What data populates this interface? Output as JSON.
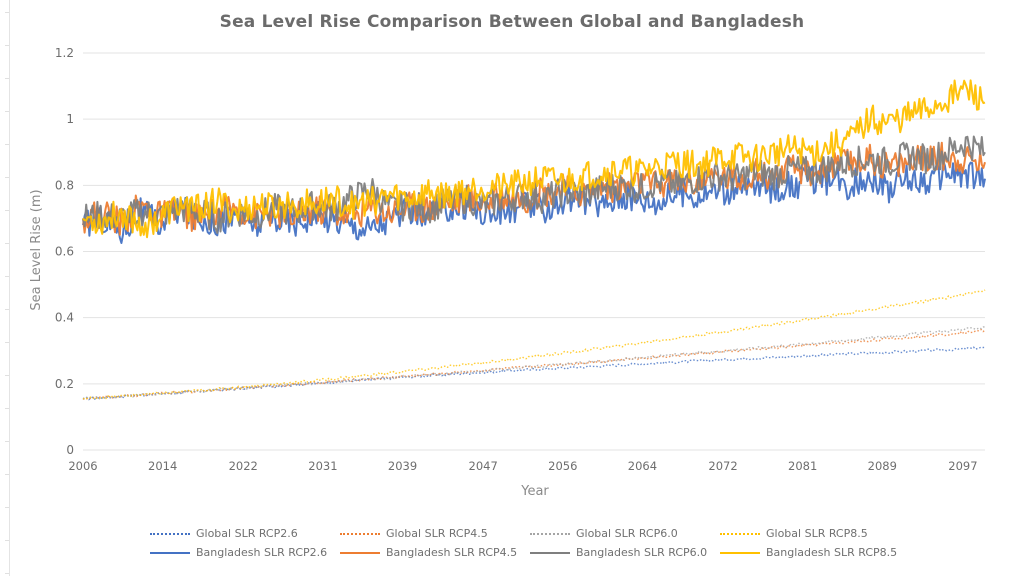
{
  "chart_data": {
    "type": "line",
    "title": "Sea Level Rise Comparison Between Global and Bangladesh",
    "xlabel": "Year",
    "ylabel": "Sea Level Rise (m)",
    "ylim": [
      0,
      1.2
    ],
    "xlim": [
      2006,
      2100
    ],
    "yticks": [
      "0",
      "0.2",
      "0.4",
      "0.6",
      "0.8",
      "1",
      "1.2"
    ],
    "ytick_values": [
      0,
      0.2,
      0.4,
      0.6,
      0.8,
      1.0,
      1.2
    ],
    "xticks": [
      "2006",
      "2014",
      "2022",
      "2031",
      "2039",
      "2047",
      "2056",
      "2064",
      "2072",
      "2081",
      "2089",
      "2097"
    ],
    "xtick_values": [
      2006,
      2014.3,
      2022.7,
      2031,
      2039.3,
      2047.7,
      2056,
      2064.3,
      2072.7,
      2081,
      2089.3,
      2097.7
    ],
    "grid": true,
    "legend_position": "bottom",
    "x": [
      2006,
      2008,
      2010,
      2012,
      2014,
      2016,
      2018,
      2020,
      2022,
      2024,
      2026,
      2028,
      2030,
      2032,
      2034,
      2036,
      2038,
      2040,
      2042,
      2044,
      2046,
      2048,
      2050,
      2052,
      2054,
      2056,
      2058,
      2060,
      2062,
      2064,
      2066,
      2068,
      2070,
      2072,
      2074,
      2076,
      2078,
      2080,
      2082,
      2084,
      2086,
      2088,
      2090,
      2092,
      2094,
      2096,
      2098,
      2100
    ],
    "series": [
      {
        "name": "Global SLR RCP2.6",
        "color": "#4472c4",
        "style": "dotted",
        "values": [
          0.155,
          0.158,
          0.162,
          0.166,
          0.17,
          0.173,
          0.177,
          0.181,
          0.185,
          0.189,
          0.193,
          0.197,
          0.201,
          0.205,
          0.209,
          0.213,
          0.217,
          0.221,
          0.225,
          0.228,
          0.232,
          0.235,
          0.239,
          0.242,
          0.245,
          0.248,
          0.251,
          0.254,
          0.257,
          0.26,
          0.263,
          0.266,
          0.269,
          0.272,
          0.275,
          0.278,
          0.28,
          0.283,
          0.286,
          0.288,
          0.291,
          0.293,
          0.296,
          0.298,
          0.301,
          0.303,
          0.306,
          0.31
        ]
      },
      {
        "name": "Global SLR RCP4.5",
        "color": "#ed7d31",
        "style": "dotted",
        "values": [
          0.155,
          0.158,
          0.162,
          0.166,
          0.17,
          0.174,
          0.178,
          0.182,
          0.186,
          0.19,
          0.194,
          0.198,
          0.202,
          0.206,
          0.211,
          0.215,
          0.219,
          0.224,
          0.228,
          0.232,
          0.237,
          0.241,
          0.246,
          0.25,
          0.255,
          0.259,
          0.264,
          0.268,
          0.273,
          0.277,
          0.282,
          0.286,
          0.291,
          0.295,
          0.3,
          0.304,
          0.309,
          0.313,
          0.318,
          0.322,
          0.327,
          0.331,
          0.336,
          0.34,
          0.345,
          0.35,
          0.356,
          0.362
        ]
      },
      {
        "name": "Global SLR RCP6.0",
        "color": "#a5a5a5",
        "style": "dotted",
        "values": [
          0.155,
          0.158,
          0.162,
          0.166,
          0.17,
          0.174,
          0.178,
          0.182,
          0.186,
          0.19,
          0.194,
          0.198,
          0.202,
          0.206,
          0.21,
          0.214,
          0.218,
          0.223,
          0.227,
          0.231,
          0.236,
          0.24,
          0.245,
          0.249,
          0.254,
          0.258,
          0.263,
          0.268,
          0.273,
          0.278,
          0.283,
          0.288,
          0.293,
          0.298,
          0.303,
          0.308,
          0.313,
          0.318,
          0.323,
          0.328,
          0.333,
          0.339,
          0.344,
          0.349,
          0.355,
          0.36,
          0.365,
          0.372
        ]
      },
      {
        "name": "Global SLR RCP8.5",
        "color": "#ffc000",
        "style": "dotted",
        "values": [
          0.155,
          0.159,
          0.163,
          0.167,
          0.171,
          0.175,
          0.18,
          0.184,
          0.189,
          0.194,
          0.199,
          0.204,
          0.209,
          0.215,
          0.221,
          0.227,
          0.233,
          0.239,
          0.245,
          0.252,
          0.258,
          0.265,
          0.272,
          0.279,
          0.286,
          0.293,
          0.3,
          0.308,
          0.315,
          0.323,
          0.331,
          0.339,
          0.347,
          0.355,
          0.363,
          0.372,
          0.38,
          0.389,
          0.397,
          0.406,
          0.415,
          0.424,
          0.433,
          0.442,
          0.451,
          0.461,
          0.471,
          0.484
        ]
      },
      {
        "name": "Bangladesh SLR RCP2.6",
        "color": "#4472c4",
        "style": "solid",
        "values": [
          0.68,
          0.7,
          0.66,
          0.72,
          0.68,
          0.73,
          0.7,
          0.69,
          0.71,
          0.68,
          0.7,
          0.69,
          0.71,
          0.7,
          0.68,
          0.67,
          0.7,
          0.72,
          0.71,
          0.73,
          0.74,
          0.71,
          0.72,
          0.74,
          0.73,
          0.75,
          0.76,
          0.74,
          0.77,
          0.76,
          0.75,
          0.78,
          0.77,
          0.79,
          0.78,
          0.8,
          0.79,
          0.8,
          0.82,
          0.81,
          0.8,
          0.83,
          0.79,
          0.82,
          0.81,
          0.84,
          0.83,
          0.82
        ]
      },
      {
        "name": "Bangladesh SLR RCP4.5",
        "color": "#ed7d31",
        "style": "solid",
        "values": [
          0.7,
          0.72,
          0.69,
          0.74,
          0.71,
          0.72,
          0.7,
          0.72,
          0.73,
          0.71,
          0.72,
          0.7,
          0.73,
          0.72,
          0.71,
          0.73,
          0.72,
          0.74,
          0.73,
          0.75,
          0.76,
          0.75,
          0.77,
          0.76,
          0.78,
          0.79,
          0.78,
          0.8,
          0.79,
          0.81,
          0.8,
          0.82,
          0.81,
          0.83,
          0.82,
          0.84,
          0.83,
          0.85,
          0.84,
          0.86,
          0.87,
          0.88,
          0.86,
          0.87,
          0.88,
          0.89,
          0.88,
          0.87
        ]
      },
      {
        "name": "Bangladesh SLR RCP6.0",
        "color": "#7f7f7f",
        "style": "solid",
        "values": [
          0.7,
          0.71,
          0.7,
          0.72,
          0.71,
          0.73,
          0.72,
          0.7,
          0.72,
          0.71,
          0.73,
          0.72,
          0.74,
          0.73,
          0.76,
          0.79,
          0.73,
          0.74,
          0.73,
          0.75,
          0.76,
          0.74,
          0.76,
          0.77,
          0.76,
          0.78,
          0.77,
          0.79,
          0.8,
          0.79,
          0.81,
          0.8,
          0.82,
          0.83,
          0.82,
          0.84,
          0.83,
          0.85,
          0.84,
          0.86,
          0.87,
          0.88,
          0.87,
          0.89,
          0.88,
          0.9,
          0.93,
          0.9
        ]
      },
      {
        "name": "Bangladesh SLR RCP8.5",
        "color": "#ffc000",
        "style": "solid",
        "values": [
          0.7,
          0.69,
          0.72,
          0.68,
          0.7,
          0.74,
          0.73,
          0.75,
          0.72,
          0.74,
          0.73,
          0.75,
          0.74,
          0.76,
          0.74,
          0.75,
          0.77,
          0.76,
          0.78,
          0.77,
          0.79,
          0.8,
          0.79,
          0.81,
          0.82,
          0.81,
          0.83,
          0.84,
          0.85,
          0.84,
          0.86,
          0.87,
          0.86,
          0.88,
          0.89,
          0.88,
          0.9,
          0.91,
          0.9,
          0.92,
          0.94,
          1.0,
          0.99,
          1.01,
          1.03,
          1.06,
          1.09,
          1.05
        ]
      }
    ]
  },
  "legend": {
    "items": [
      {
        "label": "Global SLR RCP2.6",
        "color": "#4472c4",
        "style": "dotted"
      },
      {
        "label": "Global SLR RCP4.5",
        "color": "#ed7d31",
        "style": "dotted"
      },
      {
        "label": "Global SLR RCP6.0",
        "color": "#a5a5a5",
        "style": "dotted"
      },
      {
        "label": "Global SLR RCP8.5",
        "color": "#ffc000",
        "style": "dotted"
      },
      {
        "label": "Bangladesh SLR RCP2.6",
        "color": "#4472c4",
        "style": "solid"
      },
      {
        "label": "Bangladesh SLR RCP4.5",
        "color": "#ed7d31",
        "style": "solid"
      },
      {
        "label": "Bangladesh SLR RCP6.0",
        "color": "#7f7f7f",
        "style": "solid"
      },
      {
        "label": "Bangladesh SLR RCP8.5",
        "color": "#ffc000",
        "style": "solid"
      }
    ]
  }
}
